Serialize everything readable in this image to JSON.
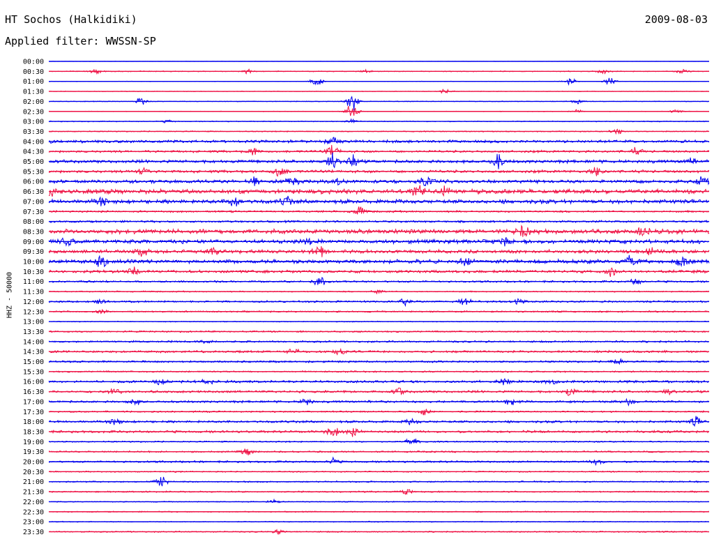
{
  "header": {
    "station": "HT Sochos (Halkidiki)",
    "date": "2009-08-03",
    "filter": "Applied filter: WWSSN-SP"
  },
  "chart_data": {
    "type": "line",
    "title": "HT Sochos (Halkidiki)",
    "date": "2009-08-03",
    "filter": "Applied filter: WWSSN-SP",
    "ylabel": "HHZ - 50000",
    "xlabel": "",
    "grid": false,
    "legend": "none",
    "colors": [
      "#0000ee",
      "#ee1144"
    ],
    "rows": [
      {
        "time": "00:00",
        "noise": 0.15,
        "events": []
      },
      {
        "time": "00:30",
        "noise": 0.6,
        "events": [
          {
            "t": 0.07,
            "a": 3
          },
          {
            "t": 0.3,
            "a": 3
          },
          {
            "t": 0.48,
            "a": 2
          },
          {
            "t": 0.84,
            "a": 3
          },
          {
            "t": 0.96,
            "a": 3
          }
        ]
      },
      {
        "time": "01:00",
        "noise": 0.3,
        "events": [
          {
            "t": 0.405,
            "a": 9
          },
          {
            "t": 0.79,
            "a": 6
          },
          {
            "t": 0.85,
            "a": 6
          }
        ]
      },
      {
        "time": "01:30",
        "noise": 0.4,
        "events": [
          {
            "t": 0.6,
            "a": 3
          }
        ]
      },
      {
        "time": "02:00",
        "noise": 0.5,
        "events": [
          {
            "t": 0.14,
            "a": 5
          },
          {
            "t": 0.46,
            "a": 12
          },
          {
            "t": 0.8,
            "a": 4
          }
        ]
      },
      {
        "time": "02:30",
        "noise": 0.4,
        "events": [
          {
            "t": 0.46,
            "a": 12
          },
          {
            "t": 0.8,
            "a": 3
          },
          {
            "t": 0.95,
            "a": 3
          }
        ]
      },
      {
        "time": "03:00",
        "noise": 0.6,
        "events": [
          {
            "t": 0.18,
            "a": 2
          },
          {
            "t": 0.46,
            "a": 3
          }
        ]
      },
      {
        "time": "03:30",
        "noise": 0.7,
        "events": [
          {
            "t": 0.86,
            "a": 4
          }
        ]
      },
      {
        "time": "04:00",
        "noise": 1.8,
        "events": [
          {
            "t": 0.0,
            "a": 4
          },
          {
            "t": 0.43,
            "a": 5
          }
        ]
      },
      {
        "time": "04:30",
        "noise": 1.5,
        "events": [
          {
            "t": 0.31,
            "a": 5
          },
          {
            "t": 0.43,
            "a": 10
          },
          {
            "t": 0.89,
            "a": 5
          }
        ]
      },
      {
        "time": "05:00",
        "noise": 2.0,
        "events": [
          {
            "t": 0.43,
            "a": 12
          },
          {
            "t": 0.46,
            "a": 8
          },
          {
            "t": 0.68,
            "a": 9
          },
          {
            "t": 0.97,
            "a": 4
          }
        ]
      },
      {
        "time": "05:30",
        "noise": 1.8,
        "events": [
          {
            "t": 0.14,
            "a": 7
          },
          {
            "t": 0.35,
            "a": 8
          },
          {
            "t": 0.83,
            "a": 6
          }
        ]
      },
      {
        "time": "06:00",
        "noise": 2.2,
        "events": [
          {
            "t": 0.31,
            "a": 6
          },
          {
            "t": 0.37,
            "a": 7
          },
          {
            "t": 0.44,
            "a": 8
          },
          {
            "t": 0.57,
            "a": 6
          },
          {
            "t": 0.99,
            "a": 6
          }
        ]
      },
      {
        "time": "06:30",
        "noise": 2.8,
        "events": [
          {
            "t": 0.0,
            "a": 9
          },
          {
            "t": 0.56,
            "a": 9
          },
          {
            "t": 0.6,
            "a": 7
          }
        ]
      },
      {
        "time": "07:00",
        "noise": 2.5,
        "events": [
          {
            "t": 0.08,
            "a": 7
          },
          {
            "t": 0.28,
            "a": 7
          },
          {
            "t": 0.36,
            "a": 5
          }
        ]
      },
      {
        "time": "07:30",
        "noise": 1.2,
        "events": [
          {
            "t": 0.47,
            "a": 8
          }
        ]
      },
      {
        "time": "08:00",
        "noise": 1.3,
        "events": []
      },
      {
        "time": "08:30",
        "noise": 2.8,
        "events": [
          {
            "t": 0.72,
            "a": 7
          },
          {
            "t": 0.9,
            "a": 6
          }
        ]
      },
      {
        "time": "09:00",
        "noise": 2.5,
        "events": [
          {
            "t": 0.03,
            "a": 7
          },
          {
            "t": 0.39,
            "a": 6
          },
          {
            "t": 0.69,
            "a": 6
          }
        ]
      },
      {
        "time": "09:30",
        "noise": 2.2,
        "events": [
          {
            "t": 0.14,
            "a": 7
          },
          {
            "t": 0.25,
            "a": 6
          },
          {
            "t": 0.41,
            "a": 8
          },
          {
            "t": 0.91,
            "a": 6
          }
        ]
      },
      {
        "time": "10:00",
        "noise": 2.5,
        "events": [
          {
            "t": 0.08,
            "a": 9
          },
          {
            "t": 0.63,
            "a": 6
          },
          {
            "t": 0.88,
            "a": 7
          },
          {
            "t": 0.96,
            "a": 8
          }
        ]
      },
      {
        "time": "10:30",
        "noise": 1.8,
        "events": [
          {
            "t": 0.13,
            "a": 6
          },
          {
            "t": 0.85,
            "a": 6
          }
        ]
      },
      {
        "time": "11:00",
        "noise": 1.2,
        "events": [
          {
            "t": 0.41,
            "a": 8
          },
          {
            "t": 0.89,
            "a": 4
          }
        ]
      },
      {
        "time": "11:30",
        "noise": 0.8,
        "events": [
          {
            "t": 0.5,
            "a": 3
          }
        ]
      },
      {
        "time": "12:00",
        "noise": 1.2,
        "events": [
          {
            "t": 0.08,
            "a": 4
          },
          {
            "t": 0.54,
            "a": 4
          },
          {
            "t": 0.63,
            "a": 5
          },
          {
            "t": 0.71,
            "a": 4
          }
        ]
      },
      {
        "time": "12:30",
        "noise": 1.0,
        "events": [
          {
            "t": 0.08,
            "a": 3
          }
        ]
      },
      {
        "time": "13:00",
        "noise": 0.6,
        "events": []
      },
      {
        "time": "13:30",
        "noise": 1.0,
        "events": []
      },
      {
        "time": "14:00",
        "noise": 1.2,
        "events": [
          {
            "t": 0.24,
            "a": 4
          }
        ]
      },
      {
        "time": "14:30",
        "noise": 1.4,
        "events": [
          {
            "t": 0.37,
            "a": 5
          },
          {
            "t": 0.44,
            "a": 5
          }
        ]
      },
      {
        "time": "15:00",
        "noise": 1.2,
        "events": [
          {
            "t": 0.86,
            "a": 5
          }
        ]
      },
      {
        "time": "15:30",
        "noise": 1.0,
        "events": []
      },
      {
        "time": "16:00",
        "noise": 1.5,
        "events": [
          {
            "t": 0.17,
            "a": 4
          },
          {
            "t": 0.24,
            "a": 5
          },
          {
            "t": 0.69,
            "a": 5
          },
          {
            "t": 0.76,
            "a": 4
          }
        ]
      },
      {
        "time": "16:30",
        "noise": 1.5,
        "events": [
          {
            "t": 0.1,
            "a": 5
          },
          {
            "t": 0.53,
            "a": 5
          },
          {
            "t": 0.79,
            "a": 6
          },
          {
            "t": 0.94,
            "a": 5
          }
        ]
      },
      {
        "time": "17:00",
        "noise": 1.4,
        "events": [
          {
            "t": 0.13,
            "a": 5
          },
          {
            "t": 0.39,
            "a": 5
          },
          {
            "t": 0.7,
            "a": 5
          },
          {
            "t": 0.88,
            "a": 7
          }
        ]
      },
      {
        "time": "17:30",
        "noise": 1.0,
        "events": [
          {
            "t": 0.57,
            "a": 6
          }
        ]
      },
      {
        "time": "18:00",
        "noise": 1.4,
        "events": [
          {
            "t": 0.1,
            "a": 5
          },
          {
            "t": 0.55,
            "a": 4
          },
          {
            "t": 0.98,
            "a": 7
          }
        ]
      },
      {
        "time": "18:30",
        "noise": 1.5,
        "events": [
          {
            "t": 0.43,
            "a": 8
          },
          {
            "t": 0.46,
            "a": 6
          }
        ]
      },
      {
        "time": "19:00",
        "noise": 0.9,
        "events": [
          {
            "t": 0.55,
            "a": 7
          }
        ]
      },
      {
        "time": "19:30",
        "noise": 1.0,
        "events": [
          {
            "t": 0.3,
            "a": 6
          }
        ]
      },
      {
        "time": "20:00",
        "noise": 1.2,
        "events": [
          {
            "t": 0.43,
            "a": 4
          },
          {
            "t": 0.83,
            "a": 6
          }
        ]
      },
      {
        "time": "20:30",
        "noise": 0.8,
        "events": []
      },
      {
        "time": "21:00",
        "noise": 0.9,
        "events": [
          {
            "t": 0.17,
            "a": 9
          }
        ]
      },
      {
        "time": "21:30",
        "noise": 0.9,
        "events": [
          {
            "t": 0.54,
            "a": 5
          }
        ]
      },
      {
        "time": "22:00",
        "noise": 0.6,
        "events": [
          {
            "t": 0.34,
            "a": 3
          }
        ]
      },
      {
        "time": "22:30",
        "noise": 0.7,
        "events": []
      },
      {
        "time": "23:00",
        "noise": 0.6,
        "events": []
      },
      {
        "time": "23:30",
        "noise": 0.8,
        "events": [
          {
            "t": 0.35,
            "a": 4
          }
        ]
      }
    ]
  }
}
